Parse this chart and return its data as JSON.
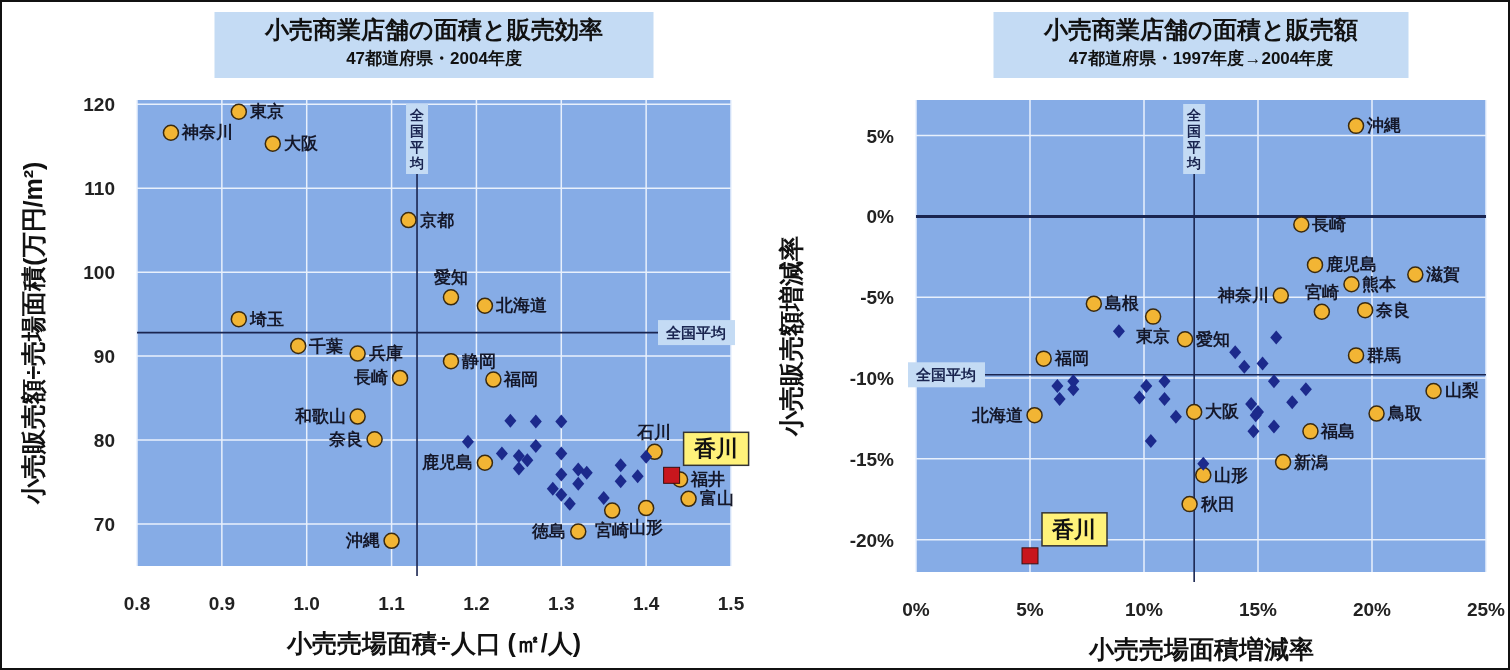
{
  "chart_data": [
    {
      "type": "scatter",
      "title": "小売商業店舗の面積と販売効率",
      "subtitle": "47都道府県・2004年度",
      "xlabel": "小売売場面積÷人口 (㎡/人)",
      "ylabel": "小売販売額÷売場面積(万円/m²)",
      "xlim": [
        0.8,
        1.5
      ],
      "xticks": [
        {
          "value": 0.8,
          "label": "0.8"
        },
        0.9,
        {
          "value": 1.0,
          "label": "1.0"
        },
        1.1,
        1.2,
        1.3,
        1.4,
        1.5
      ],
      "ylim": [
        65,
        120.5
      ],
      "yticks": [
        70,
        80,
        90,
        100,
        110,
        120
      ],
      "grid": true,
      "legend": false,
      "series": [
        {
          "color": "#f2b534",
          "marker": "circle",
          "x": [
            0.84,
            0.92,
            0.96,
            1.12,
            1.17,
            1.21,
            0.92,
            0.99,
            1.06,
            1.11,
            1.06,
            1.08,
            1.1,
            1.17,
            1.22,
            1.21,
            1.41,
            1.44,
            1.45,
            1.4,
            1.36,
            1.32
          ],
          "values": [
            116.6,
            119.1,
            115.3,
            106.2,
            97.0,
            96.0,
            94.4,
            91.2,
            90.3,
            87.4,
            82.8,
            80.1,
            68.0,
            89.4,
            87.2,
            77.3,
            78.6,
            75.3,
            73.0,
            71.9,
            71.6,
            69.1
          ]
        },
        {
          "color": "#1c2a8c",
          "marker": "diamond",
          "x": [
            1.24,
            1.27,
            1.3,
            1.19,
            1.23,
            1.25,
            1.25,
            1.27,
            1.26,
            1.3,
            1.3,
            1.32,
            1.33,
            1.32,
            1.29,
            1.3,
            1.31,
            1.35,
            1.37,
            1.37,
            1.39,
            1.4
          ],
          "values": [
            82.3,
            82.2,
            82.2,
            79.8,
            78.4,
            78.1,
            76.6,
            79.3,
            77.6,
            78.4,
            75.9,
            76.5,
            76.1,
            74.8,
            74.2,
            73.5,
            72.4,
            73.1,
            77.0,
            75.1,
            75.7,
            78.0
          ]
        },
        {
          "name": "香川",
          "color": "#c8161d",
          "marker": "square",
          "x": [
            1.43
          ],
          "values": [
            75.8
          ]
        }
      ],
      "ref_lines": [
        {
          "axis": "x",
          "value": 1.13,
          "label": "全国平均"
        },
        {
          "axis": "y",
          "value": 92.8,
          "label": "全国平均"
        }
      ],
      "annotations": [
        {
          "text": "神奈川",
          "x": 0.84,
          "y": 116.6
        },
        {
          "text": "東京",
          "x": 0.92,
          "y": 119.1
        },
        {
          "text": "大阪",
          "x": 0.96,
          "y": 115.3
        },
        {
          "text": "京都",
          "x": 1.12,
          "y": 106.2
        },
        {
          "text": "愛知",
          "x": 1.17,
          "y": 97.0
        },
        {
          "text": "北海道",
          "x": 1.21,
          "y": 96.0
        },
        {
          "text": "埼玉",
          "x": 0.92,
          "y": 94.4
        },
        {
          "text": "千葉",
          "x": 0.99,
          "y": 91.2
        },
        {
          "text": "兵庫",
          "x": 1.06,
          "y": 90.3
        },
        {
          "text": "長崎",
          "x": 1.11,
          "y": 87.4
        },
        {
          "text": "和歌山",
          "x": 1.06,
          "y": 82.8
        },
        {
          "text": "奈良",
          "x": 1.08,
          "y": 80.1
        },
        {
          "text": "沖縄",
          "x": 1.1,
          "y": 68.0
        },
        {
          "text": "静岡",
          "x": 1.17,
          "y": 89.4
        },
        {
          "text": "福岡",
          "x": 1.22,
          "y": 87.2
        },
        {
          "text": "鹿児島",
          "x": 1.21,
          "y": 77.3
        },
        {
          "text": "石川",
          "x": 1.41,
          "y": 78.6
        },
        {
          "text": "福井",
          "x": 1.44,
          "y": 75.3
        },
        {
          "text": "富山",
          "x": 1.45,
          "y": 73.0
        },
        {
          "text": "山形",
          "x": 1.4,
          "y": 71.9
        },
        {
          "text": "宮崎",
          "x": 1.36,
          "y": 71.6
        },
        {
          "text": "徳島",
          "x": 1.32,
          "y": 69.1
        }
      ]
    },
    {
      "type": "scatter",
      "title": "小売商業店舗の面積と販売額",
      "subtitle": "47都道府県・1997年度→2004年度",
      "xlabel": "小売売場面積増減率",
      "ylabel": "小売販売額増減率",
      "xlim": [
        0,
        25
      ],
      "xticks": [
        {
          "value": 0,
          "label": "0%"
        },
        {
          "value": 5,
          "label": "5%"
        },
        {
          "value": 10,
          "label": "10%"
        },
        {
          "value": 15,
          "label": "15%"
        },
        {
          "value": 20,
          "label": "20%"
        },
        {
          "value": 25,
          "label": "25%"
        }
      ],
      "ylim": [
        -22,
        7.2
      ],
      "yticks": [
        {
          "value": 5,
          "label": "5%"
        },
        {
          "value": 0,
          "label": "0%"
        },
        {
          "value": -5,
          "label": "-5%"
        },
        {
          "value": -10,
          "label": "-10%"
        },
        {
          "value": -15,
          "label": "-15%"
        },
        {
          "value": -20,
          "label": "-20%"
        }
      ],
      "grid": true,
      "legend": false,
      "series": [
        {
          "color": "#f2b534",
          "marker": "circle",
          "x": [
            19.3,
            16.9,
            17.5,
            19.1,
            21.9,
            7.8,
            10.4,
            16.0,
            11.8,
            17.8,
            19.7,
            5.6,
            19.3,
            22.7,
            5.2,
            12.2,
            20.2,
            17.3,
            16.1,
            12.6,
            12.0
          ],
          "values": [
            5.6,
            -0.5,
            -3.0,
            -4.2,
            -3.6,
            -5.4,
            -6.2,
            -4.9,
            -7.6,
            -5.9,
            -5.8,
            -8.8,
            -8.6,
            -10.8,
            -12.3,
            -12.1,
            -12.2,
            -13.3,
            -15.2,
            -16.0,
            -17.8
          ]
        },
        {
          "color": "#1c2a8c",
          "marker": "diamond",
          "x": [
            8.9,
            15.8,
            14.0,
            14.4,
            15.2,
            6.2,
            6.9,
            6.9,
            6.3,
            10.1,
            10.9,
            9.8,
            10.9,
            11.4,
            10.3,
            15.7,
            17.1,
            16.5,
            14.7,
            15.0,
            14.9,
            14.8,
            15.7,
            12.6
          ],
          "values": [
            -7.1,
            -7.5,
            -8.4,
            -9.3,
            -9.1,
            -10.5,
            -10.2,
            -10.7,
            -11.3,
            -10.5,
            -10.2,
            -11.2,
            -11.3,
            -12.4,
            -13.9,
            -10.2,
            -10.7,
            -11.5,
            -11.6,
            -12.1,
            -12.3,
            -13.3,
            -13.0,
            -15.3
          ]
        },
        {
          "name": "香川",
          "color": "#c8161d",
          "marker": "square",
          "x": [
            5.0
          ],
          "values": [
            -21.0
          ]
        }
      ],
      "ref_lines": [
        {
          "axis": "x",
          "value": 12.2,
          "label": "全国平均"
        },
        {
          "axis": "y",
          "value": -9.8,
          "label": "全国平均"
        },
        {
          "axis": "y",
          "value": 0,
          "color": "#1a2550"
        }
      ],
      "annotations": [
        {
          "text": "沖縄",
          "x": 19.3,
          "y": 5.6
        },
        {
          "text": "長崎",
          "x": 16.9,
          "y": -0.5
        },
        {
          "text": "鹿児島",
          "x": 17.5,
          "y": -3.0
        },
        {
          "text": "熊本",
          "x": 19.1,
          "y": -4.2
        },
        {
          "text": "滋賀",
          "x": 21.9,
          "y": -3.6
        },
        {
          "text": "島根",
          "x": 7.8,
          "y": -5.4
        },
        {
          "text": "東京",
          "x": 10.4,
          "y": -6.2
        },
        {
          "text": "神奈川",
          "x": 16.0,
          "y": -4.9
        },
        {
          "text": "愛知",
          "x": 11.8,
          "y": -7.6
        },
        {
          "text": "宮崎",
          "x": 17.8,
          "y": -5.9
        },
        {
          "text": "奈良",
          "x": 19.7,
          "y": -5.8
        },
        {
          "text": "福岡",
          "x": 5.6,
          "y": -8.8
        },
        {
          "text": "群馬",
          "x": 19.3,
          "y": -8.6
        },
        {
          "text": "山梨",
          "x": 22.7,
          "y": -10.8
        },
        {
          "text": "北海道",
          "x": 5.2,
          "y": -12.3
        },
        {
          "text": "大阪",
          "x": 12.2,
          "y": -12.1
        },
        {
          "text": "鳥取",
          "x": 20.2,
          "y": -12.2
        },
        {
          "text": "福島",
          "x": 17.3,
          "y": -13.3
        },
        {
          "text": "新潟",
          "x": 16.1,
          "y": -15.2
        },
        {
          "text": "山形",
          "x": 12.6,
          "y": -16.0
        },
        {
          "text": "秋田",
          "x": 12.0,
          "y": -17.8
        }
      ]
    }
  ]
}
